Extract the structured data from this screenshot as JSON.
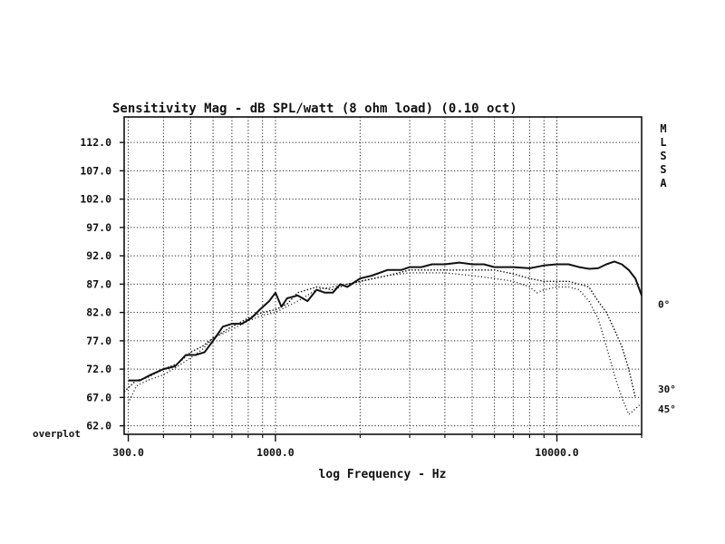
{
  "chart_data": {
    "type": "line",
    "title": "Sensitivity Mag - dB SPL/watt (8 ohm load) (0.10 oct)",
    "xlabel": "log Frequency - Hz",
    "ylabel": "",
    "xscale": "log",
    "xlim": [
      290,
      20000
    ],
    "ylim": [
      60.5,
      116.5
    ],
    "grid": true,
    "yticks": [
      {
        "value": 112,
        "label": "112.0"
      },
      {
        "value": 107,
        "label": "107.0"
      },
      {
        "value": 102,
        "label": "102.0"
      },
      {
        "value": 97,
        "label": "97.0"
      },
      {
        "value": 92,
        "label": "92.0"
      },
      {
        "value": 87,
        "label": "87.0"
      },
      {
        "value": 82,
        "label": "82.0"
      },
      {
        "value": 77,
        "label": "77.0"
      },
      {
        "value": 72,
        "label": "72.0"
      },
      {
        "value": 67,
        "label": "67.0"
      },
      {
        "value": 62,
        "label": "62.0"
      }
    ],
    "xticks": [
      {
        "value": 300,
        "label": "300.0"
      },
      {
        "value": 1000,
        "label": "1000.0"
      },
      {
        "value": 10000,
        "label": "10000.0"
      }
    ],
    "overplot_label": "overplot",
    "side_label": [
      "M",
      "L",
      "S",
      "S",
      "A"
    ],
    "series": [
      {
        "name": "0°",
        "style": "solid",
        "x": [
          300,
          330,
          360,
          400,
          440,
          480,
          520,
          560,
          600,
          650,
          700,
          760,
          820,
          880,
          950,
          1000,
          1050,
          1100,
          1200,
          1300,
          1400,
          1500,
          1600,
          1700,
          1800,
          2000,
          2200,
          2500,
          2800,
          3000,
          3300,
          3600,
          4000,
          4500,
          5000,
          5500,
          6000,
          7000,
          8000,
          9000,
          10000,
          11000,
          12000,
          13000,
          14000,
          15000,
          16000,
          17000,
          18000,
          19000,
          20000
        ],
        "y": [
          70,
          70,
          71,
          72,
          72.5,
          74.5,
          74.5,
          75,
          77,
          79.5,
          80,
          80,
          81,
          82.5,
          84,
          85.5,
          83,
          84.5,
          85,
          84,
          86,
          85.5,
          85.5,
          87,
          86.5,
          88,
          88.5,
          89.5,
          89.5,
          90,
          90,
          90.5,
          90.5,
          90.8,
          90.5,
          90.5,
          90,
          90,
          89.8,
          90.3,
          90.5,
          90.5,
          90,
          89.7,
          89.8,
          90.5,
          91,
          90.5,
          89.5,
          88,
          85
        ]
      },
      {
        "name": "30°",
        "style": "dotted",
        "x": [
          290,
          320,
          350,
          400,
          450,
          500,
          550,
          600,
          700,
          800,
          900,
          1000,
          1100,
          1200,
          1400,
          1600,
          1800,
          2000,
          2500,
          3000,
          3500,
          4000,
          5000,
          6000,
          7000,
          8000,
          9000,
          10000,
          11000,
          12000,
          13000,
          14000,
          15000,
          16000,
          17000,
          18000,
          19000
        ],
        "y": [
          68,
          70,
          70.5,
          72,
          73,
          75,
          76,
          77.5,
          79.5,
          81,
          82,
          82.5,
          83.5,
          85.5,
          86.5,
          86,
          87,
          87.5,
          88.5,
          89.5,
          89.5,
          89.5,
          89.5,
          89.5,
          88.8,
          88,
          87.5,
          87.5,
          87.5,
          87,
          86.5,
          84,
          82,
          79,
          76,
          72,
          67
        ]
      },
      {
        "name": "45°",
        "style": "dotted",
        "x": [
          300,
          320,
          350,
          400,
          450,
          500,
          550,
          600,
          700,
          800,
          900,
          1000,
          1200,
          1400,
          1600,
          1800,
          2000,
          2500,
          3000,
          3500,
          4000,
          5000,
          6000,
          7000,
          8000,
          8500,
          9000,
          10000,
          11000,
          12000,
          13000,
          14000,
          15000,
          16000,
          17000,
          18000,
          19000,
          20000
        ],
        "y": [
          66,
          69,
          70,
          71,
          72.5,
          74,
          75.5,
          77.5,
          79,
          80.5,
          81.5,
          82,
          84,
          86,
          86.5,
          87,
          87.5,
          88.5,
          89,
          89,
          89,
          88.5,
          88,
          87.5,
          86.5,
          85.5,
          86,
          86.5,
          86.5,
          86,
          84,
          81,
          76,
          71,
          67,
          64,
          65,
          66
        ]
      }
    ],
    "annotations": [
      {
        "text": "0°",
        "y": 83.5
      },
      {
        "text": "30°",
        "y": 68.5
      },
      {
        "text": "45°",
        "y": 65
      }
    ]
  }
}
